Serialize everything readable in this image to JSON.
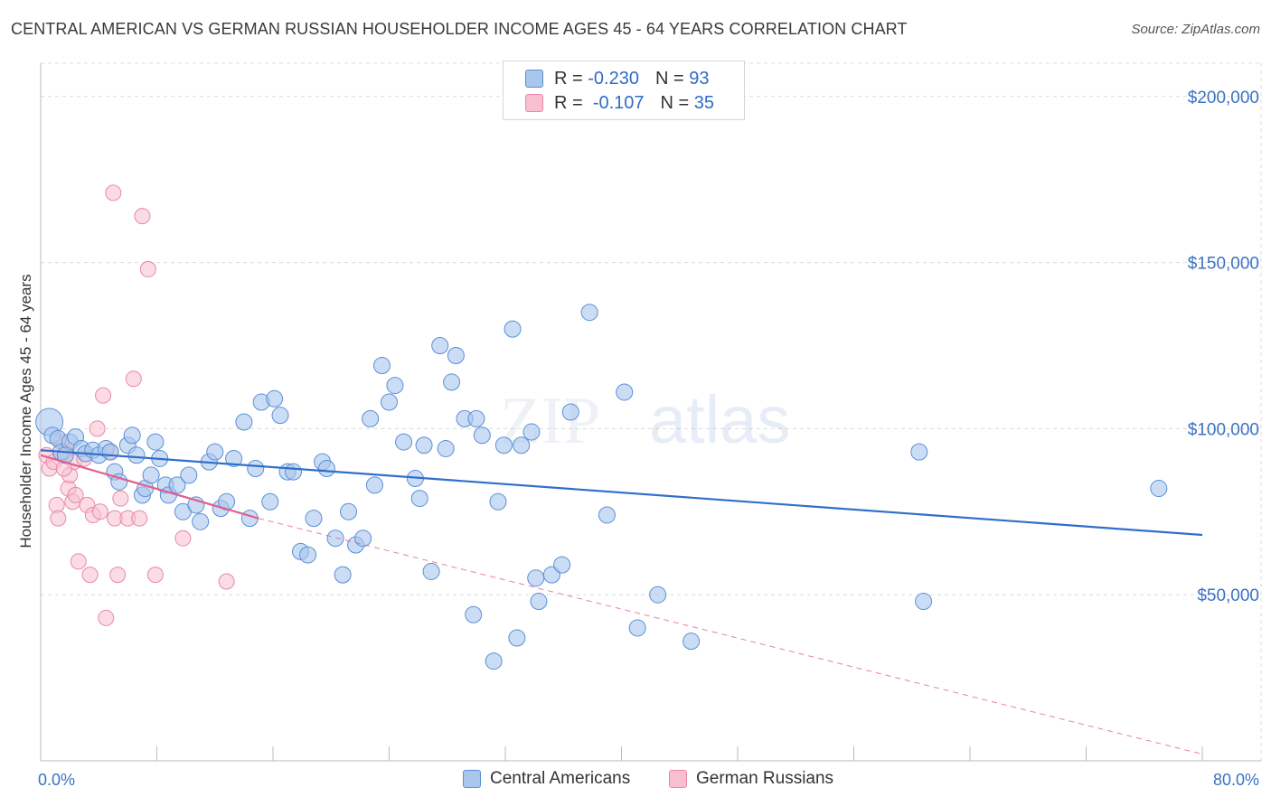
{
  "header": {
    "title": "CENTRAL AMERICAN VS GERMAN RUSSIAN HOUSEHOLDER INCOME AGES 45 - 64 YEARS CORRELATION CHART",
    "source": "Source: ZipAtlas.com"
  },
  "colors": {
    "blue_fill": "#a9c6ec",
    "blue_stroke": "#5b8fd6",
    "blue_line": "#2f6fcc",
    "pink_fill": "#f7bfd0",
    "pink_stroke": "#e889a6",
    "pink_line": "#e0608f",
    "tick_text": "#3a72c4",
    "grid": "#dcdcdc"
  },
  "legend": {
    "rows": [
      {
        "r_label": "R =",
        "r_value": "-0.230",
        "n_label": "N =",
        "n_value": "93"
      },
      {
        "r_label": "R =",
        "r_value": "-0.107",
        "n_label": "N =",
        "n_value": "35"
      }
    ]
  },
  "bottom_legend": {
    "series1": "Central Americans",
    "series2": "German Russians"
  },
  "watermark": {
    "zip": "ZIP",
    "atlas": "atlas"
  },
  "chart_data": {
    "type": "scatter",
    "title": "CENTRAL AMERICAN VS GERMAN RUSSIAN HOUSEHOLDER INCOME AGES 45 - 64 YEARS CORRELATION CHART",
    "xlabel": "",
    "ylabel": "Householder Income Ages 45 - 64 years",
    "xlim": [
      0,
      80
    ],
    "ylim": [
      0,
      210000
    ],
    "x_tick_labels": [
      "0.0%",
      "80.0%"
    ],
    "y_ticks": [
      50000,
      100000,
      150000,
      200000
    ],
    "y_tick_labels": [
      "$50,000",
      "$100,000",
      "$150,000",
      "$200,000"
    ],
    "grid": true,
    "series": [
      {
        "name": "Central Americans",
        "r": -0.23,
        "n": 93,
        "trend": {
          "x0": 0,
          "y0": 93500,
          "x1": 80,
          "y1": 68000
        },
        "points": [
          [
            0.6,
            102000
          ],
          [
            0.8,
            98000
          ],
          [
            1.2,
            97000
          ],
          [
            1.4,
            93000
          ],
          [
            2.0,
            96000
          ],
          [
            2.4,
            97500
          ],
          [
            2.8,
            94000
          ],
          [
            3.1,
            92500
          ],
          [
            3.6,
            93500
          ],
          [
            4.0,
            92000
          ],
          [
            4.5,
            94000
          ],
          [
            4.8,
            93000
          ],
          [
            5.1,
            87000
          ],
          [
            5.4,
            84000
          ],
          [
            6.0,
            95000
          ],
          [
            6.3,
            98000
          ],
          [
            6.6,
            92000
          ],
          [
            7.0,
            80000
          ],
          [
            7.2,
            82000
          ],
          [
            7.6,
            86000
          ],
          [
            7.9,
            96000
          ],
          [
            8.2,
            91000
          ],
          [
            8.6,
            83000
          ],
          [
            8.8,
            80000
          ],
          [
            9.4,
            83000
          ],
          [
            9.8,
            75000
          ],
          [
            10.2,
            86000
          ],
          [
            10.7,
            77000
          ],
          [
            11.0,
            72000
          ],
          [
            11.6,
            90000
          ],
          [
            12.0,
            93000
          ],
          [
            12.4,
            76000
          ],
          [
            12.8,
            78000
          ],
          [
            13.3,
            91000
          ],
          [
            14.0,
            102000
          ],
          [
            14.4,
            73000
          ],
          [
            14.8,
            88000
          ],
          [
            15.2,
            108000
          ],
          [
            15.8,
            78000
          ],
          [
            16.1,
            109000
          ],
          [
            16.5,
            104000
          ],
          [
            17.0,
            87000
          ],
          [
            17.4,
            87000
          ],
          [
            17.9,
            63000
          ],
          [
            18.4,
            62000
          ],
          [
            18.8,
            73000
          ],
          [
            19.4,
            90000
          ],
          [
            19.7,
            88000
          ],
          [
            20.3,
            67000
          ],
          [
            20.8,
            56000
          ],
          [
            21.2,
            75000
          ],
          [
            21.7,
            65000
          ],
          [
            22.2,
            67000
          ],
          [
            22.7,
            103000
          ],
          [
            23.0,
            83000
          ],
          [
            23.5,
            119000
          ],
          [
            24.0,
            108000
          ],
          [
            24.4,
            113000
          ],
          [
            25.0,
            96000
          ],
          [
            25.8,
            85000
          ],
          [
            26.1,
            79000
          ],
          [
            26.4,
            95000
          ],
          [
            26.9,
            57000
          ],
          [
            27.5,
            125000
          ],
          [
            27.9,
            94000
          ],
          [
            28.3,
            114000
          ],
          [
            28.6,
            122000
          ],
          [
            29.2,
            103000
          ],
          [
            29.8,
            44000
          ],
          [
            30.0,
            103000
          ],
          [
            30.4,
            98000
          ],
          [
            31.2,
            30000
          ],
          [
            31.5,
            78000
          ],
          [
            31.9,
            95000
          ],
          [
            32.5,
            130000
          ],
          [
            32.8,
            37000
          ],
          [
            33.1,
            95000
          ],
          [
            33.8,
            99000
          ],
          [
            34.1,
            55000
          ],
          [
            34.3,
            48000
          ],
          [
            35.2,
            56000
          ],
          [
            35.9,
            59000
          ],
          [
            36.5,
            105000
          ],
          [
            37.8,
            135000
          ],
          [
            39.0,
            74000
          ],
          [
            40.2,
            111000
          ],
          [
            41.1,
            40000
          ],
          [
            42.5,
            50000
          ],
          [
            44.8,
            36000
          ],
          [
            60.5,
            93000
          ],
          [
            60.8,
            48000
          ],
          [
            77.0,
            82000
          ],
          [
            1.7,
            92000
          ]
        ]
      },
      {
        "name": "German Russians",
        "r": -0.107,
        "n": 35,
        "trend": {
          "x0": 0,
          "y0": 92000,
          "x1": 15,
          "y1": 73000
        },
        "trend_dashed": {
          "x0": 15,
          "y0": 73000,
          "x1": 80,
          "y1": 2000
        },
        "points": [
          [
            0.4,
            92000
          ],
          [
            0.6,
            88000
          ],
          [
            0.9,
            90000
          ],
          [
            1.1,
            77000
          ],
          [
            1.2,
            73000
          ],
          [
            1.4,
            96000
          ],
          [
            1.7,
            93000
          ],
          [
            1.9,
            82000
          ],
          [
            2.0,
            86000
          ],
          [
            2.2,
            78000
          ],
          [
            2.3,
            90000
          ],
          [
            2.4,
            80000
          ],
          [
            2.6,
            60000
          ],
          [
            3.0,
            91000
          ],
          [
            3.2,
            77000
          ],
          [
            3.4,
            56000
          ],
          [
            3.6,
            74000
          ],
          [
            3.9,
            100000
          ],
          [
            4.1,
            75000
          ],
          [
            4.3,
            110000
          ],
          [
            4.5,
            43000
          ],
          [
            4.8,
            93000
          ],
          [
            5.0,
            171000
          ],
          [
            5.1,
            73000
          ],
          [
            5.3,
            56000
          ],
          [
            5.5,
            79000
          ],
          [
            6.0,
            73000
          ],
          [
            6.4,
            115000
          ],
          [
            6.8,
            73000
          ],
          [
            7.0,
            164000
          ],
          [
            7.4,
            148000
          ],
          [
            7.9,
            56000
          ],
          [
            9.8,
            67000
          ],
          [
            12.8,
            54000
          ],
          [
            1.6,
            88000
          ]
        ]
      }
    ]
  }
}
